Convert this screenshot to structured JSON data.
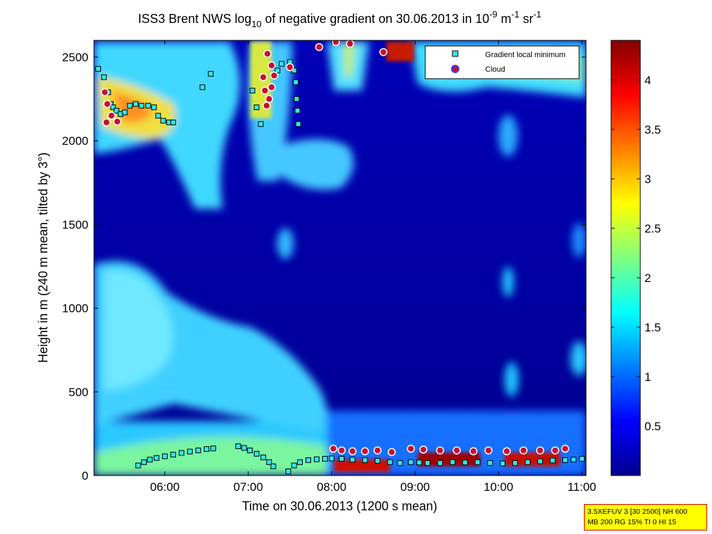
{
  "chart_data": {
    "type": "heatmap",
    "title_parts": {
      "prefix": "ISS3 Brent NWS log",
      "log_base": "10",
      "middle": " of negative gradient on 30.06.2013 in 10",
      "exp1": "-9",
      "unit_m": " m",
      "exp2": "-1",
      "unit_sr": " sr",
      "exp3": "-1"
    },
    "xlabel": "Time on 30.06.2013 (1200 s mean)",
    "ylabel": "Height in m (240 m mean, tilted by 3°)",
    "x_ticks": [
      "06:00",
      "07:00",
      "08:00",
      "09:00",
      "10:00",
      "11:00"
    ],
    "x_tick_hours": [
      6,
      7,
      8,
      9,
      10,
      11
    ],
    "xlim_hours": [
      5.15,
      11.05
    ],
    "y_ticks": [
      0,
      500,
      1000,
      1500,
      2000,
      2500
    ],
    "ylim": [
      0,
      2600
    ],
    "colorbar": {
      "ticks": [
        0.5,
        1,
        1.5,
        2,
        2.5,
        3,
        3.5,
        4
      ],
      "tick_labels": [
        "0.5",
        "1",
        "1.5",
        "2",
        "2.5",
        "3",
        "3.5",
        "4"
      ],
      "range": [
        0,
        4.4
      ],
      "colormap": "jet"
    },
    "legend": {
      "position": "top-right",
      "entries": [
        {
          "label": "Gradient local minimum",
          "marker": "square",
          "fill": "#33e6e6",
          "edge": "#000000"
        },
        {
          "label": "Cloud",
          "marker": "circle",
          "fill": "#c8102e",
          "edge": "#3b3bff"
        }
      ]
    },
    "gradient_local_minimum": [
      [
        5.2,
        2430
      ],
      [
        5.27,
        2380
      ],
      [
        5.32,
        2290
      ],
      [
        5.35,
        2220
      ],
      [
        5.38,
        2200
      ],
      [
        5.42,
        2180
      ],
      [
        5.47,
        2160
      ],
      [
        5.52,
        2170
      ],
      [
        5.58,
        2210
      ],
      [
        5.65,
        2220
      ],
      [
        5.72,
        2210
      ],
      [
        5.8,
        2210
      ],
      [
        5.87,
        2200
      ],
      [
        5.92,
        2150
      ],
      [
        5.98,
        2120
      ],
      [
        6.05,
        2110
      ],
      [
        6.1,
        2110
      ],
      [
        5.68,
        60
      ],
      [
        5.75,
        80
      ],
      [
        5.82,
        95
      ],
      [
        5.9,
        105
      ],
      [
        6.0,
        115
      ],
      [
        6.1,
        125
      ],
      [
        6.2,
        135
      ],
      [
        6.3,
        143
      ],
      [
        6.4,
        150
      ],
      [
        6.5,
        158
      ],
      [
        6.58,
        162
      ],
      [
        6.88,
        175
      ],
      [
        6.95,
        165
      ],
      [
        7.02,
        150
      ],
      [
        7.1,
        130
      ],
      [
        7.18,
        108
      ],
      [
        7.25,
        80
      ],
      [
        7.3,
        55
      ],
      [
        7.48,
        25
      ],
      [
        7.55,
        60
      ],
      [
        7.62,
        80
      ],
      [
        7.72,
        92
      ],
      [
        7.82,
        97
      ],
      [
        7.92,
        100
      ],
      [
        8.0,
        102
      ],
      [
        8.12,
        100
      ],
      [
        8.25,
        95
      ],
      [
        8.4,
        92
      ],
      [
        8.55,
        88
      ],
      [
        8.7,
        80
      ],
      [
        8.82,
        75
      ],
      [
        8.95,
        80
      ],
      [
        9.05,
        78
      ],
      [
        9.15,
        75
      ],
      [
        9.3,
        75
      ],
      [
        9.45,
        80
      ],
      [
        9.6,
        78
      ],
      [
        9.75,
        80
      ],
      [
        9.9,
        75
      ],
      [
        10.05,
        72
      ],
      [
        10.2,
        75
      ],
      [
        10.35,
        80
      ],
      [
        10.5,
        85
      ],
      [
        10.65,
        90
      ],
      [
        10.8,
        92
      ],
      [
        10.9,
        95
      ],
      [
        11.0,
        100
      ],
      [
        6.45,
        2320
      ],
      [
        6.55,
        2400
      ],
      [
        7.05,
        2300
      ],
      [
        7.1,
        2200
      ],
      [
        7.15,
        2100
      ],
      [
        7.35,
        2420
      ],
      [
        7.4,
        2460
      ],
      [
        7.5,
        2470
      ],
      [
        7.55,
        2420
      ],
      [
        7.57,
        2350
      ],
      [
        7.58,
        2250
      ],
      [
        7.59,
        2180
      ],
      [
        7.6,
        2100
      ]
    ],
    "cloud": [
      [
        5.28,
        2290
      ],
      [
        5.31,
        2220
      ],
      [
        5.36,
        2150
      ],
      [
        5.43,
        2115
      ],
      [
        5.3,
        2110
      ],
      [
        7.23,
        2520
      ],
      [
        7.28,
        2450
      ],
      [
        7.31,
        2390
      ],
      [
        7.28,
        2320
      ],
      [
        7.25,
        2250
      ],
      [
        7.22,
        2210
      ],
      [
        7.2,
        2300
      ],
      [
        7.18,
        2380
      ],
      [
        7.5,
        2440
      ],
      [
        7.85,
        2560
      ],
      [
        8.05,
        2590
      ],
      [
        8.22,
        2580
      ],
      [
        8.62,
        2530
      ],
      [
        8.02,
        160
      ],
      [
        8.12,
        150
      ],
      [
        8.25,
        145
      ],
      [
        8.4,
        145
      ],
      [
        8.55,
        150
      ],
      [
        8.72,
        140
      ],
      [
        8.95,
        160
      ],
      [
        9.1,
        155
      ],
      [
        9.3,
        150
      ],
      [
        9.5,
        150
      ],
      [
        9.7,
        145
      ],
      [
        9.88,
        150
      ],
      [
        10.1,
        145
      ],
      [
        10.3,
        150
      ],
      [
        10.5,
        150
      ],
      [
        10.68,
        150
      ],
      [
        10.8,
        160
      ]
    ]
  },
  "info_box": {
    "line1": "3.5XEFUV 3 [30 2500] NH 600",
    "line2": "MB 200 RG 15% TI 0 HI 15"
  }
}
